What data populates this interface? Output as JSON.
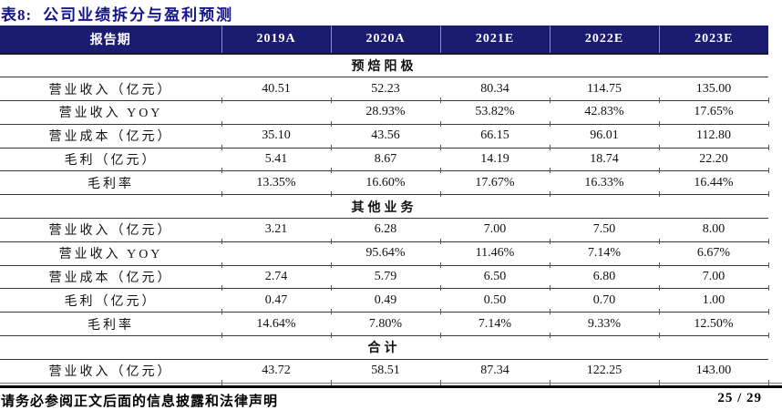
{
  "title": {
    "prefix": "表8:",
    "text": "公司业绩拆分与盈利预测"
  },
  "table": {
    "header": [
      "报告期",
      "2019A",
      "2020A",
      "2021E",
      "2022E",
      "2023E"
    ],
    "sections": [
      {
        "name": "预焙阳极",
        "rows": [
          {
            "label": "营业收入（亿元）",
            "values": [
              "40.51",
              "52.23",
              "80.34",
              "114.75",
              "135.00"
            ]
          },
          {
            "label": "营业收入 YOY",
            "values": [
              "",
              "28.93%",
              "53.82%",
              "42.83%",
              "17.65%"
            ]
          },
          {
            "label": "营业成本（亿元）",
            "values": [
              "35.10",
              "43.56",
              "66.15",
              "96.01",
              "112.80"
            ]
          },
          {
            "label": "毛利（亿元）",
            "values": [
              "5.41",
              "8.67",
              "14.19",
              "18.74",
              "22.20"
            ]
          },
          {
            "label": "毛利率",
            "values": [
              "13.35%",
              "16.60%",
              "17.67%",
              "16.33%",
              "16.44%"
            ]
          }
        ]
      },
      {
        "name": "其他业务",
        "rows": [
          {
            "label": "营业收入（亿元）",
            "values": [
              "3.21",
              "6.28",
              "7.00",
              "7.50",
              "8.00"
            ]
          },
          {
            "label": "营业收入 YOY",
            "values": [
              "",
              "95.64%",
              "11.46%",
              "7.14%",
              "6.67%"
            ]
          },
          {
            "label": "营业成本（亿元）",
            "values": [
              "2.74",
              "5.79",
              "6.50",
              "6.80",
              "7.00"
            ]
          },
          {
            "label": "毛利（亿元）",
            "values": [
              "0.47",
              "0.49",
              "0.50",
              "0.70",
              "1.00"
            ]
          },
          {
            "label": "毛利率",
            "values": [
              "14.64%",
              "7.80%",
              "7.14%",
              "9.33%",
              "12.50%"
            ]
          }
        ]
      },
      {
        "name": "合计",
        "rows": [
          {
            "label": "营业收入（亿元）",
            "values": [
              "43.72",
              "58.51",
              "87.34",
              "122.25",
              "143.00"
            ]
          }
        ]
      }
    ]
  },
  "footer": {
    "disclaimer": "请务必参阅正文后面的信息披露和法律声明",
    "page": "25 / 29"
  },
  "colors": {
    "header_bg": "#1b1b70",
    "title_color": "#14148c",
    "rule_color": "#000000"
  }
}
